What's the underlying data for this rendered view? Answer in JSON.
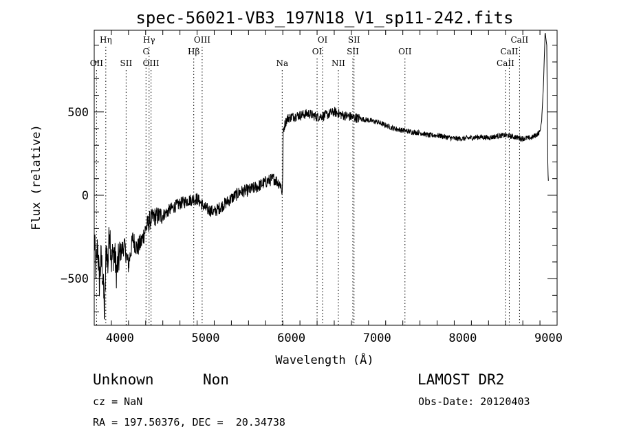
{
  "chart_data": {
    "type": "line",
    "title": "spec-56021-VB3_197N18_V1_sp11-242.fits",
    "xlabel": "Wavelength (Å)",
    "ylabel": "Flux (relative)",
    "xlim": [
      3700,
      9100
    ],
    "ylim": [
      -780,
      990
    ],
    "x_ticks": [
      4000,
      5000,
      6000,
      7000,
      8000,
      9000
    ],
    "x_tick_labels": [
      "4000",
      "5000",
      "6000",
      "7000",
      "8000",
      "9000"
    ],
    "y_ticks": [
      -500,
      0,
      500
    ],
    "y_tick_labels": [
      "−500",
      "0",
      "500"
    ],
    "grid": false,
    "series": [
      {
        "x": [
          3700,
          3720,
          3740,
          3760,
          3780,
          3800,
          3820,
          3840,
          3860,
          3880,
          3900,
          3930,
          3960,
          4000,
          4050,
          4100,
          4150,
          4200,
          4250,
          4300,
          4350,
          4400,
          4500,
          4600,
          4700,
          4800,
          4900,
          5000,
          5100,
          5200,
          5300,
          5400,
          5500,
          5600,
          5700,
          5800,
          5880,
          5895,
          5905,
          5920,
          5950,
          6000,
          6100,
          6200,
          6300,
          6400,
          6500,
          6600,
          6700,
          6800,
          6900,
          7000,
          7100,
          7200,
          7300,
          7400,
          7500,
          7600,
          7700,
          7800,
          7900,
          8000,
          8100,
          8200,
          8300,
          8400,
          8500,
          8600,
          8700,
          8800,
          8850,
          8900,
          8920,
          8940,
          8960,
          8980,
          8990,
          8995,
          9000
        ],
        "y": [
          -260,
          -450,
          -300,
          -520,
          -380,
          -480,
          -720,
          -300,
          -420,
          -180,
          -400,
          -330,
          -460,
          -350,
          -300,
          -420,
          -260,
          -320,
          -280,
          -200,
          -150,
          -130,
          -120,
          -80,
          -50,
          -30,
          -20,
          -80,
          -100,
          -60,
          -20,
          20,
          30,
          50,
          80,
          100,
          60,
          0,
          380,
          420,
          460,
          470,
          480,
          490,
          470,
          480,
          500,
          480,
          470,
          460,
          450,
          440,
          420,
          400,
          390,
          380,
          375,
          360,
          360,
          350,
          340,
          340,
          345,
          350,
          345,
          355,
          360,
          350,
          340,
          345,
          360,
          380,
          450,
          650,
          980,
          900,
          250,
          120,
          60
        ]
      }
    ],
    "lines": [
      {
        "label": "Hη",
        "x": 3835,
        "row": 0
      },
      {
        "label": "OII",
        "x": 3727,
        "row": 2
      },
      {
        "label": "SII",
        "x": 4072,
        "row": 2
      },
      {
        "label": "Hγ",
        "x": 4340,
        "row": 0
      },
      {
        "label": "G",
        "x": 4304,
        "row": 1
      },
      {
        "label": "OIII",
        "x": 4363,
        "row": 2
      },
      {
        "label": "OIII",
        "x": 4959,
        "row": 0
      },
      {
        "label": "Hβ",
        "x": 4861,
        "row": 1
      },
      {
        "label": "Na",
        "x": 5893,
        "row": 2
      },
      {
        "label": "OI",
        "x": 6364,
        "row": 0
      },
      {
        "label": "OI",
        "x": 6300,
        "row": 1
      },
      {
        "label": "NII",
        "x": 6548,
        "row": 2
      },
      {
        "label": "SII",
        "x": 6731,
        "row": 0
      },
      {
        "label": "SII",
        "x": 6717,
        "row": 1
      },
      {
        "label": "OII",
        "x": 7325,
        "row": 1
      },
      {
        "label": "CaII",
        "x": 8662,
        "row": 0
      },
      {
        "label": "CaII",
        "x": 8542,
        "row": 1
      },
      {
        "label": "CaII",
        "x": 8498,
        "row": 2
      }
    ]
  },
  "info": {
    "object_class": "Unknown",
    "object_subclass": "Non",
    "survey": "LAMOST DR2",
    "cz": "cz = NaN",
    "obs_date": "Obs-Date: 20120403",
    "coords": "RA = 197.50376, DEC =  20.34738"
  }
}
